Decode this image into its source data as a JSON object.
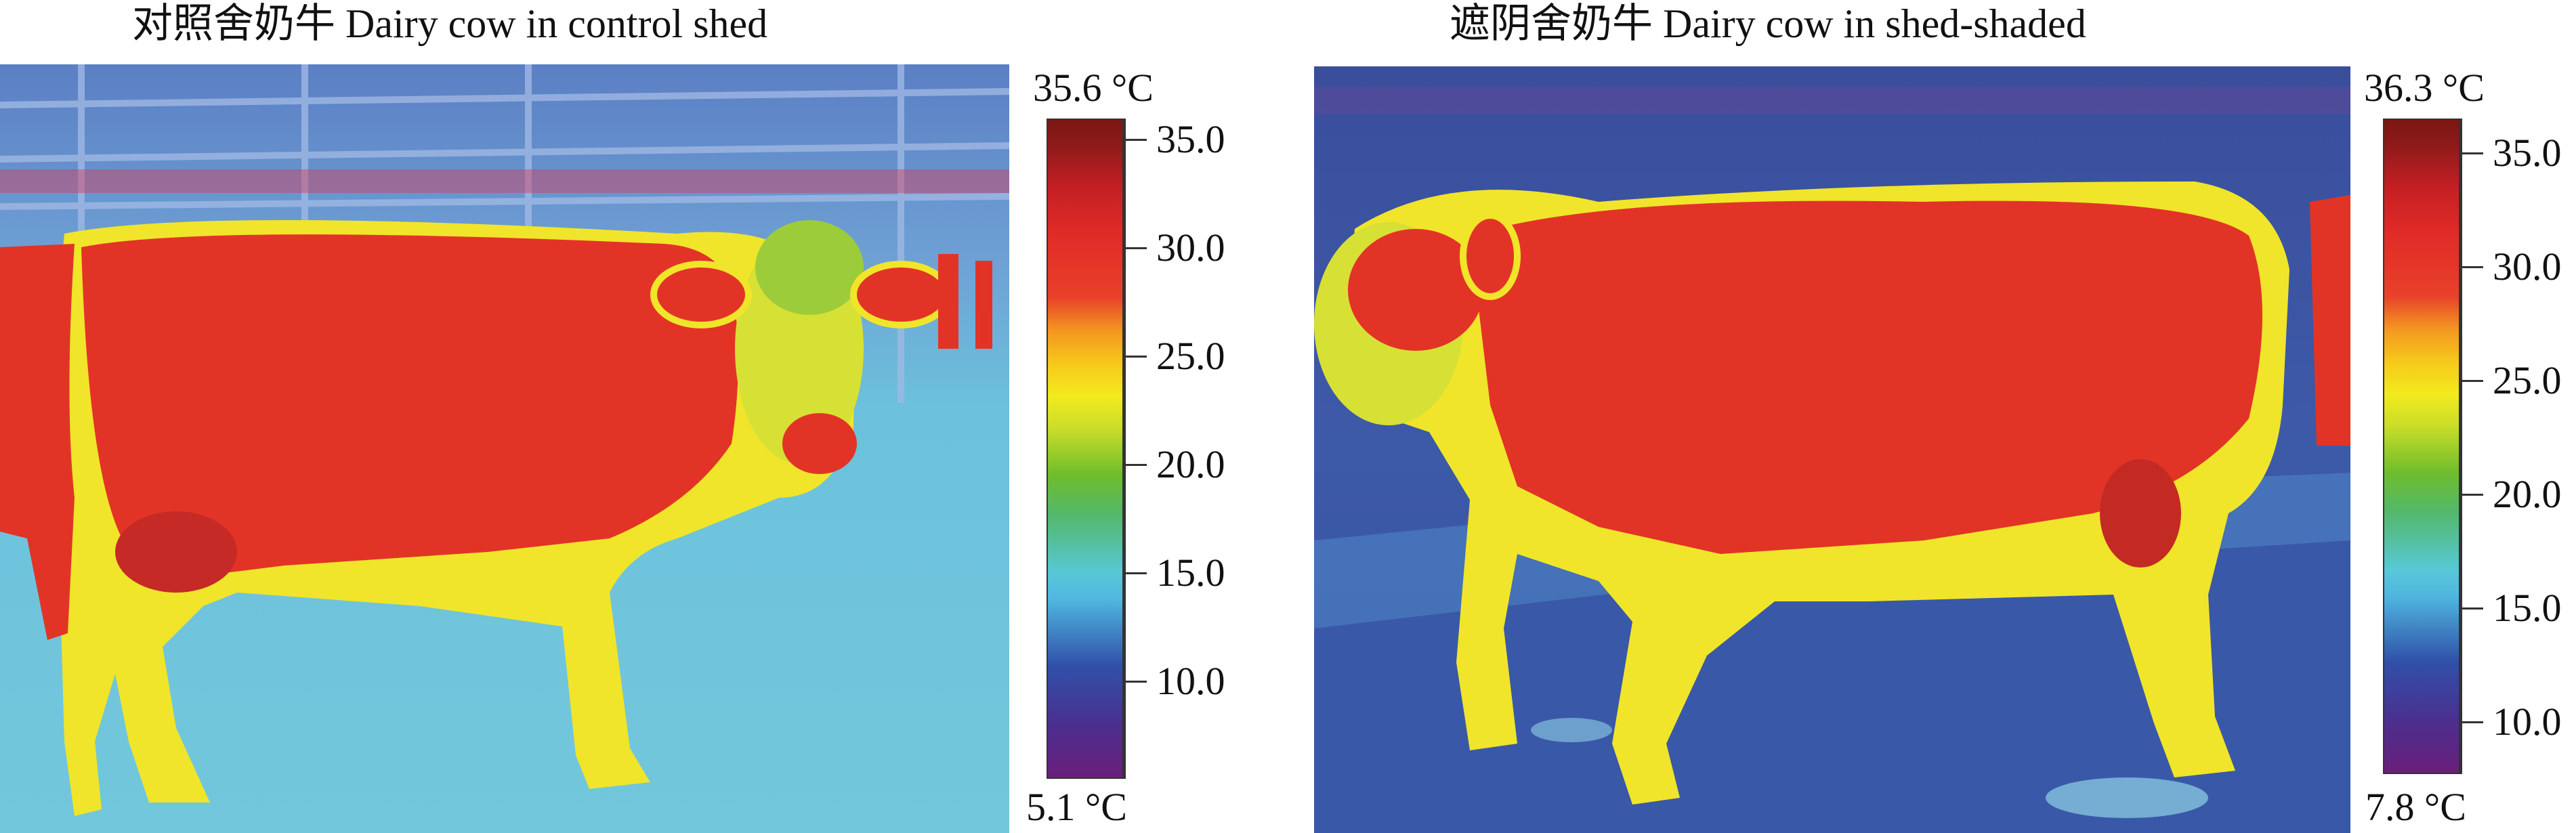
{
  "panels": [
    {
      "title": "对照舍奶牛 Dairy cow in control shed",
      "colorbar": {
        "max_label": "35.6 °C",
        "min_label": "5.1 °C",
        "ticks": [
          "35.0",
          "30.0",
          "25.0",
          "20.0",
          "15.0",
          "10.0"
        ]
      }
    },
    {
      "title": "遮阴舍奶牛 Dairy cow in shed-shaded",
      "colorbar": {
        "max_label": "36.3 °C",
        "min_label": "7.8 °C",
        "ticks": [
          "35.0",
          "30.0",
          "25.0",
          "20.0",
          "15.0",
          "10.0"
        ]
      }
    }
  ]
}
